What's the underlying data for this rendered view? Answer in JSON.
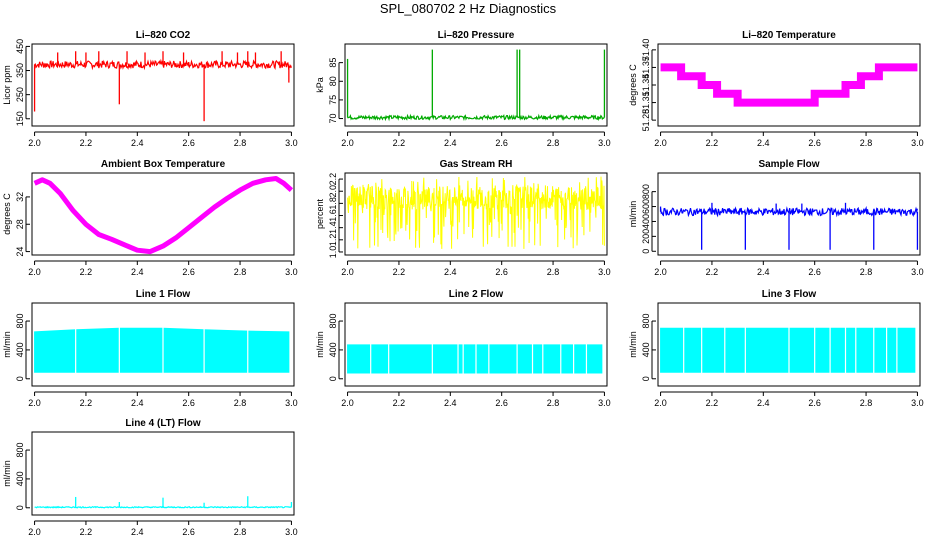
{
  "figure": {
    "title": "SPL_080702  2 Hz Diagnostics"
  },
  "chart_data": [
    {
      "type": "line",
      "title": "Li–820 CO2",
      "ylabel": "Licor ppm",
      "color": "#ff0000",
      "pattern": "spikes",
      "xlim": [
        1.99,
        3.01
      ],
      "xticks": [
        2.0,
        2.2,
        2.4,
        2.6,
        2.8,
        3.0
      ],
      "xtick_labels": [
        "2.0",
        "2.2",
        "2.4",
        "2.6",
        "2.8",
        "3.0"
      ],
      "ylim": [
        120,
        460
      ],
      "yticks": [
        150,
        250,
        350,
        450
      ],
      "ytick_labels": [
        "150",
        "250",
        "350",
        "450"
      ],
      "baseline": 375,
      "band": [
        360,
        390
      ],
      "spikes": [
        [
          2.0,
          180
        ],
        [
          2.09,
          425
        ],
        [
          2.16,
          430
        ],
        [
          2.2,
          425
        ],
        [
          2.25,
          430
        ],
        [
          2.33,
          210
        ],
        [
          2.36,
          430
        ],
        [
          2.43,
          425
        ],
        [
          2.5,
          430
        ],
        [
          2.58,
          425
        ],
        [
          2.66,
          140
        ],
        [
          2.73,
          430
        ],
        [
          2.79,
          425
        ],
        [
          2.83,
          430
        ],
        [
          2.86,
          425
        ],
        [
          2.96,
          430
        ],
        [
          2.99,
          300
        ]
      ]
    },
    {
      "type": "line",
      "title": "Li–820 Pressure",
      "ylabel": "kPa",
      "color": "#00aa00",
      "pattern": "spikes",
      "xlim": [
        1.99,
        3.01
      ],
      "xticks": [
        2.0,
        2.2,
        2.4,
        2.6,
        2.8,
        3.0
      ],
      "xtick_labels": [
        "2.0",
        "2.2",
        "2.4",
        "2.6",
        "2.8",
        "3.0"
      ],
      "ylim": [
        68,
        90
      ],
      "yticks": [
        70,
        75,
        80,
        85
      ],
      "ytick_labels": [
        "70",
        "75",
        "80",
        "85"
      ],
      "baseline": 70.3,
      "band": [
        69.8,
        70.8
      ],
      "spikes": [
        [
          2.0,
          86
        ],
        [
          2.33,
          88.5
        ],
        [
          2.66,
          88.5
        ],
        [
          2.67,
          88.5
        ],
        [
          3.0,
          88.5
        ]
      ]
    },
    {
      "type": "line",
      "title": "Li–820 Temperature",
      "ylabel": "degrees C",
      "color": "#ff00ff",
      "pattern": "steps",
      "xlim": [
        1.99,
        3.01
      ],
      "xticks": [
        2.0,
        2.2,
        2.4,
        2.6,
        2.8,
        3.0
      ],
      "xtick_labels": [
        "2.0",
        "2.2",
        "2.4",
        "2.6",
        "2.8",
        "3.0"
      ],
      "ylim": [
        51.27,
        51.41
      ],
      "yticks": [
        51.28,
        51.31,
        51.34,
        51.37,
        51.4
      ],
      "ytick_labels": [
        "51.28",
        "51.31",
        "51.34",
        "51.37",
        "51.40"
      ],
      "x": [
        2.0,
        2.05,
        2.08,
        2.13,
        2.16,
        2.22,
        2.3,
        2.4,
        2.5,
        2.53,
        2.6,
        2.66,
        2.72,
        2.78,
        2.8,
        2.85,
        2.9,
        2.98,
        3.0
      ],
      "y": [
        51.37,
        51.37,
        51.355,
        51.355,
        51.34,
        51.325,
        51.31,
        51.31,
        51.31,
        51.31,
        51.325,
        51.325,
        51.34,
        51.355,
        51.355,
        51.37,
        51.37,
        51.37,
        51.37
      ]
    },
    {
      "type": "line",
      "title": "Ambient Box Temperature",
      "ylabel": "degrees C",
      "color": "#ff00ff",
      "pattern": "smooth",
      "xlim": [
        1.99,
        3.01
      ],
      "xticks": [
        2.0,
        2.2,
        2.4,
        2.6,
        2.8,
        3.0
      ],
      "xtick_labels": [
        "2.0",
        "2.2",
        "2.4",
        "2.6",
        "2.8",
        "3.0"
      ],
      "ylim": [
        23.5,
        35.5
      ],
      "yticks": [
        24,
        28,
        32
      ],
      "ytick_labels": [
        "24",
        "28",
        "32"
      ],
      "x": [
        2.0,
        2.03,
        2.06,
        2.1,
        2.15,
        2.2,
        2.25,
        2.3,
        2.35,
        2.4,
        2.45,
        2.5,
        2.55,
        2.6,
        2.65,
        2.7,
        2.75,
        2.8,
        2.85,
        2.9,
        2.94,
        2.97,
        3.0
      ],
      "y": [
        34.0,
        34.5,
        34.0,
        32.5,
        30.0,
        28.0,
        26.5,
        25.8,
        25.0,
        24.2,
        24.0,
        24.8,
        26.0,
        27.5,
        29.0,
        30.5,
        31.8,
        33.0,
        34.0,
        34.5,
        34.7,
        34.0,
        33.0
      ]
    },
    {
      "type": "line",
      "title": "Gas Stream RH",
      "ylabel": "percent",
      "color": "#ffff00",
      "pattern": "noise",
      "xlim": [
        1.99,
        3.01
      ],
      "xticks": [
        2.0,
        2.2,
        2.4,
        2.6,
        2.8,
        3.0
      ],
      "xtick_labels": [
        "2.0",
        "2.2",
        "2.4",
        "2.6",
        "2.8",
        "3.0"
      ],
      "ylim": [
        0.95,
        2.3
      ],
      "yticks": [
        1.0,
        1.2,
        1.4,
        1.6,
        1.8,
        2.0,
        2.2
      ],
      "ytick_labels": [
        "1.0",
        "1.2",
        "1.4",
        "1.6",
        "1.8",
        "2.0",
        "2.2"
      ],
      "band": [
        1.7,
        2.1
      ],
      "range": [
        1.05,
        2.25
      ]
    },
    {
      "type": "line",
      "title": "Sample Flow",
      "ylabel": "ml/min",
      "color": "#0000ff",
      "pattern": "spikes",
      "xlim": [
        1.99,
        3.01
      ],
      "xticks": [
        2.0,
        2.2,
        2.4,
        2.6,
        2.8,
        3.0
      ],
      "xtick_labels": [
        "2.0",
        "2.2",
        "2.4",
        "2.6",
        "2.8",
        "3.0"
      ],
      "ylim": [
        -50,
        1050
      ],
      "yticks": [
        0,
        200,
        400,
        600,
        800
      ],
      "ytick_labels": [
        "0",
        "200",
        "400",
        "600",
        "800"
      ],
      "baseline": 530,
      "band": [
        480,
        580
      ],
      "spikes": [
        [
          2.0,
          600
        ],
        [
          2.16,
          20
        ],
        [
          2.33,
          20
        ],
        [
          2.5,
          20
        ],
        [
          2.66,
          20
        ],
        [
          2.83,
          20
        ],
        [
          3.0,
          20
        ],
        [
          2.2,
          650
        ],
        [
          2.45,
          640
        ],
        [
          2.55,
          640
        ],
        [
          2.72,
          650
        ]
      ]
    },
    {
      "type": "bar",
      "title": "Line 1 Flow",
      "ylabel": "ml/min",
      "color": "#00ffff",
      "pattern": "block",
      "xlim": [
        1.99,
        3.01
      ],
      "xticks": [
        2.0,
        2.2,
        2.4,
        2.6,
        2.8,
        3.0
      ],
      "xtick_labels": [
        "2.0",
        "2.2",
        "2.4",
        "2.6",
        "2.8",
        "3.0"
      ],
      "ylim": [
        -100,
        1050
      ],
      "yticks": [
        0,
        400,
        800
      ],
      "ytick_labels": [
        "0",
        "400",
        "800"
      ],
      "x": [
        2.0,
        2.16,
        2.33,
        2.5,
        2.66,
        2.83,
        2.99
      ],
      "top": [
        650,
        680,
        700,
        700,
        680,
        660,
        650
      ],
      "bottom": 90,
      "gaps": [
        2.16,
        2.33,
        2.5,
        2.66,
        2.83
      ]
    },
    {
      "type": "bar",
      "title": "Line 2 Flow",
      "ylabel": "ml/min",
      "color": "#00ffff",
      "pattern": "block",
      "xlim": [
        1.99,
        3.01
      ],
      "xticks": [
        2.0,
        2.2,
        2.4,
        2.6,
        2.8,
        3.0
      ],
      "xtick_labels": [
        "2.0",
        "2.2",
        "2.4",
        "2.6",
        "2.8",
        "3.0"
      ],
      "ylim": [
        -100,
        1050
      ],
      "yticks": [
        0,
        400,
        800
      ],
      "ytick_labels": [
        "0",
        "400",
        "800"
      ],
      "x": [
        2.0,
        2.99
      ],
      "top": [
        470,
        470
      ],
      "bottom": 80,
      "gaps": [
        2.09,
        2.16,
        2.33,
        2.43,
        2.45,
        2.5,
        2.55,
        2.66,
        2.72,
        2.76,
        2.83,
        2.88,
        2.93
      ]
    },
    {
      "type": "bar",
      "title": "Line 3 Flow",
      "ylabel": "ml/min",
      "color": "#00ffff",
      "pattern": "block",
      "xlim": [
        1.99,
        3.01
      ],
      "xticks": [
        2.0,
        2.2,
        2.4,
        2.6,
        2.8,
        3.0
      ],
      "xtick_labels": [
        "2.0",
        "2.2",
        "2.4",
        "2.6",
        "2.8",
        "3.0"
      ],
      "ylim": [
        -100,
        1050
      ],
      "yticks": [
        0,
        400,
        800
      ],
      "ytick_labels": [
        "0",
        "400",
        "800"
      ],
      "x": [
        2.0,
        2.99
      ],
      "top": [
        700,
        700
      ],
      "bottom": 90,
      "gaps": [
        2.09,
        2.16,
        2.25,
        2.33,
        2.5,
        2.6,
        2.66,
        2.72,
        2.76,
        2.83,
        2.88,
        2.92
      ]
    },
    {
      "type": "line",
      "title": "Line 4 (LT) Flow",
      "ylabel": "ml/min",
      "color": "#00ffff",
      "pattern": "spikes",
      "xlim": [
        1.99,
        3.01
      ],
      "xticks": [
        2.0,
        2.2,
        2.4,
        2.6,
        2.8,
        3.0
      ],
      "xtick_labels": [
        "2.0",
        "2.2",
        "2.4",
        "2.6",
        "2.8",
        "3.0"
      ],
      "ylim": [
        -100,
        1050
      ],
      "yticks": [
        0,
        400,
        800
      ],
      "ytick_labels": [
        "0",
        "400",
        "800"
      ],
      "baseline": 5,
      "band": [
        0,
        15
      ],
      "spikes": [
        [
          2.16,
          150
        ],
        [
          2.33,
          80
        ],
        [
          2.5,
          140
        ],
        [
          2.66,
          70
        ],
        [
          2.83,
          160
        ],
        [
          3.0,
          80
        ]
      ]
    }
  ]
}
